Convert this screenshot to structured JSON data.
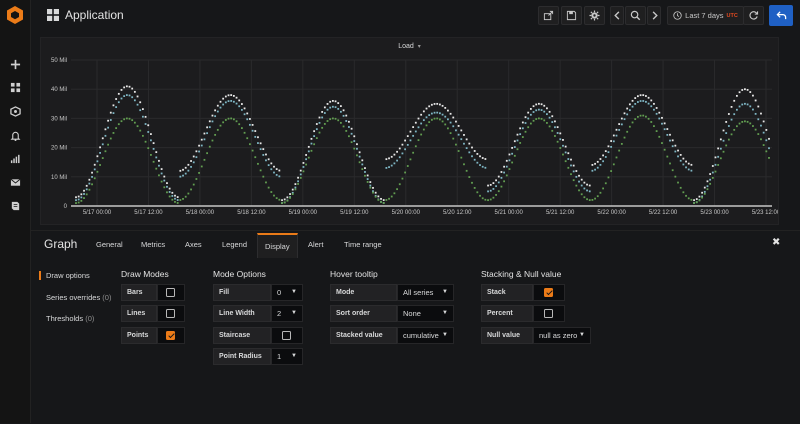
{
  "app": {
    "title": "Application"
  },
  "toolbar": {
    "time_range": "Last 7 days",
    "timezone": "UTC",
    "buttons": [
      "share-icon",
      "save-icon",
      "gear-icon",
      "chevron-left-icon",
      "zoom-out-icon",
      "chevron-right-icon",
      "refresh-icon",
      "back-arrow-icon"
    ]
  },
  "sidebar": {
    "icons": [
      "grafana-logo-icon",
      "plus-icon",
      "dashboards-icon",
      "explore-icon",
      "bell-icon",
      "signal-icon",
      "mail-icon",
      "book-icon"
    ]
  },
  "panel": {
    "title": "Load"
  },
  "chart_data": {
    "type": "scatter",
    "title": "Load",
    "y_ticks": [
      "0",
      "10 Mil",
      "20 Mil",
      "30 Mil",
      "40 Mil",
      "50 Mil"
    ],
    "ylim": [
      0,
      50
    ],
    "y_unit": "Mil",
    "x_ticks": [
      "5/17 00:00",
      "5/17 12:00",
      "5/18 00:00",
      "5/18 12:00",
      "5/19 00:00",
      "5/19 12:00",
      "5/20 00:00",
      "5/20 12:00",
      "5/21 00:00",
      "5/21 12:00",
      "5/22 00:00",
      "5/22 12:00",
      "5/23 00:00",
      "5/23 12:00"
    ],
    "series_colors": [
      "#e8e8e8",
      "#7eb6c4",
      "#629e51"
    ],
    "peaks_per_series": [
      {
        "color": "#e8e8e8",
        "peaks": [
          41,
          38,
          36,
          35,
          35,
          38,
          40
        ],
        "troughs": [
          3,
          12,
          2,
          16,
          7,
          14,
          2
        ]
      },
      {
        "color": "#7eb6c4",
        "peaks": [
          38,
          36,
          34,
          32,
          33,
          36,
          35
        ],
        "troughs": [
          2,
          10,
          1,
          13,
          5,
          12,
          1
        ]
      },
      {
        "color": "#629e51",
        "peaks": [
          30,
          30,
          30,
          30,
          30,
          31,
          29
        ],
        "troughs": [
          1,
          2,
          1,
          2,
          2,
          2,
          1
        ]
      }
    ],
    "grid": true
  },
  "editor": {
    "title": "Graph",
    "tabs": [
      "General",
      "Metrics",
      "Axes",
      "Legend",
      "Display",
      "Alert",
      "Time range"
    ],
    "active_tab": "Display",
    "sidenav": [
      {
        "label": "Draw options",
        "count": ""
      },
      {
        "label": "Series overrides",
        "count": "(0)"
      },
      {
        "label": "Thresholds",
        "count": "(0)"
      }
    ],
    "draw_modes": {
      "title": "Draw Modes",
      "rows": [
        {
          "label": "Bars",
          "checked": false
        },
        {
          "label": "Lines",
          "checked": false
        },
        {
          "label": "Points",
          "checked": true
        }
      ]
    },
    "mode_options": {
      "title": "Mode Options",
      "fill_label": "Fill",
      "fill_value": "0",
      "line_width_label": "Line Width",
      "line_width_value": "2",
      "staircase_label": "Staircase",
      "staircase_checked": false,
      "point_radius_label": "Point Radius",
      "point_radius_value": "1"
    },
    "hover_tooltip": {
      "title": "Hover tooltip",
      "mode_label": "Mode",
      "mode_value": "All series",
      "sort_label": "Sort order",
      "sort_value": "None",
      "stacked_label": "Stacked value",
      "stacked_value": "cumulative"
    },
    "stacking": {
      "title": "Stacking & Null value",
      "stack_label": "Stack",
      "stack_checked": true,
      "percent_label": "Percent",
      "percent_checked": false,
      "null_label": "Null value",
      "null_value": "null as zero"
    }
  }
}
